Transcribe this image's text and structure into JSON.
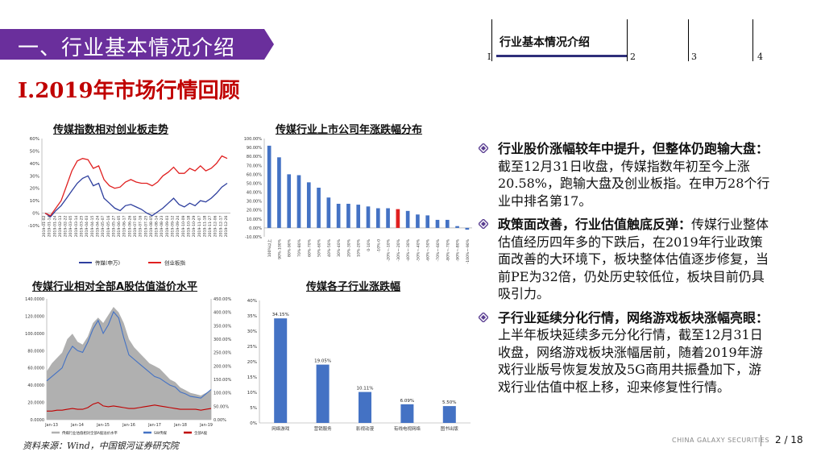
{
  "header": {
    "section_title": "一、行业基本情况介绍",
    "subtitle": "I.2019年市场行情回顾"
  },
  "nav": {
    "active_label": "行业基本情况介绍",
    "numbers": [
      "I",
      "2",
      "3",
      "4"
    ]
  },
  "colors": {
    "banner": "#6a2f9c",
    "media_series": "#2e3f9e",
    "gem_series": "#e02020",
    "bar_blue": "#4472c4",
    "bar_highlight": "#e02020",
    "nav_bar": "#2e2e7a"
  },
  "chart_data": [
    {
      "type": "line",
      "title": "传媒指数相对创业板走势",
      "y_ticks": [
        "-10%",
        "0%",
        "10%",
        "20%",
        "30%",
        "40%",
        "50%",
        "60%"
      ],
      "ylim": [
        -10,
        60
      ],
      "x_ticks": [
        "2019-01-02",
        "2019-01-14",
        "2019-01-24",
        "2019-02-13",
        "2019-02-22",
        "2019-03-05",
        "2019-03-14",
        "2019-03-25",
        "2019-04-03",
        "2019-04-15",
        "2019-04-24",
        "2019-05-07",
        "2019-05-16",
        "2019-05-27",
        "2019-06-05",
        "2019-06-17",
        "2019-06-26",
        "2019-07-05",
        "2019-07-16",
        "2019-07-25",
        "2019-08-05",
        "2019-08-14",
        "2019-08-23",
        "2019-09-03",
        "2019-09-12",
        "2019-09-24",
        "2019-10-09",
        "2019-10-18",
        "2019-10-29",
        "2019-11-07",
        "2019-11-18",
        "2019-11-27",
        "2019-12-06",
        "2019-12-17",
        "2019-12-26"
      ],
      "series": [
        {
          "name": "传媒(申万)",
          "color": "#2e3f9e",
          "values": [
            0,
            -3,
            2,
            6,
            12,
            18,
            24,
            28,
            30,
            22,
            24,
            12,
            8,
            4,
            2,
            6,
            7,
            5,
            3,
            0,
            -2,
            1,
            4,
            8,
            12,
            7,
            5,
            8,
            6,
            10,
            9,
            12,
            16,
            21,
            24
          ]
        },
        {
          "name": "创业板指",
          "color": "#e02020",
          "values": [
            0,
            -2,
            4,
            10,
            22,
            34,
            42,
            44,
            43,
            36,
            38,
            27,
            22,
            20,
            21,
            25,
            27,
            25,
            24,
            24,
            22,
            25,
            30,
            33,
            37,
            32,
            32,
            36,
            34,
            38,
            34,
            36,
            40,
            46,
            44
          ]
        }
      ]
    },
    {
      "type": "bar",
      "title": "传媒行业上市公司年涨跌幅分布",
      "y_ticks": [
        "-10.00%",
        "0.00%",
        "10.00%",
        "20.00%",
        "30.00%",
        "40.00%",
        "50.00%",
        "60.00%",
        "70.00%",
        "80.00%",
        "90.00%",
        "100.00%"
      ],
      "ylim": [
        -10,
        100
      ],
      "categories": [
        "100%以上",
        "90%-100%",
        "80%-90%",
        "70%-80%",
        "60%-70%",
        "50%-60%",
        "40%-50%",
        "30%-40%",
        "20%-30%",
        "10%-20%",
        "0-10%",
        "-10%-0",
        "-20%~-10%",
        "-30%~-20%",
        "-40%~-30%",
        "-50%~-40%",
        "-60%~-50%",
        "-70%~-60%",
        "-80%~-70%",
        "-90%~-80%",
        "-100%~-90%"
      ],
      "values": [
        92,
        79,
        60,
        59,
        51,
        45,
        34,
        27,
        27,
        26,
        24,
        22,
        22,
        21,
        19,
        15,
        14,
        9,
        9,
        2,
        -2
      ],
      "highlight_index": 13
    },
    {
      "type": "area",
      "title": "传媒行业相对全部A股估值溢价水平",
      "y_left_ticks": [
        "0.0000",
        "20.0000",
        "40.0000",
        "60.0000",
        "80.0000",
        "100.0000",
        "120.0000",
        "140.0000"
      ],
      "y_right_ticks": [
        "0.00%",
        "50.00%",
        "100.00%",
        "150.00%",
        "200.00%",
        "250.00%",
        "300.00%",
        "350.00%",
        "400.00%",
        "450.00%"
      ],
      "ylim_left": [
        0,
        140
      ],
      "ylim_right": [
        0,
        450
      ],
      "x_ticks": [
        "Jan-13",
        "Jan-14",
        "Jan-15",
        "Jan-16",
        "Jan-17",
        "Jan-18",
        "Jan-19"
      ],
      "series": [
        {
          "name": "传媒行业估值相对全部A股溢价水平",
          "color": "#b0b0b0",
          "values": [
            180,
            210,
            230,
            250,
            300,
            320,
            290,
            280,
            310,
            360,
            380,
            360,
            390,
            420,
            400,
            360,
            300,
            270,
            250,
            230,
            210,
            200,
            190,
            170,
            150,
            140,
            120,
            110,
            100,
            95,
            90,
            100,
            110
          ]
        },
        {
          "name": "SW传媒",
          "color": "#4472c4",
          "values": [
            45,
            50,
            55,
            60,
            75,
            85,
            80,
            78,
            90,
            105,
            115,
            100,
            110,
            125,
            118,
            95,
            75,
            70,
            65,
            60,
            55,
            50,
            48,
            44,
            40,
            38,
            32,
            30,
            27,
            26,
            25,
            30,
            35
          ]
        },
        {
          "name": "全部A股",
          "color": "#c00000",
          "values": [
            10,
            10,
            11,
            11,
            12,
            13,
            12,
            12,
            14,
            18,
            20,
            16,
            15,
            16,
            15,
            14,
            13,
            13,
            14,
            15,
            16,
            17,
            16,
            15,
            14,
            13,
            12,
            12,
            12,
            12,
            11,
            12,
            13
          ]
        }
      ]
    },
    {
      "type": "bar",
      "title": "传媒各子行业涨跌幅",
      "y_ticks": [
        "0%",
        "5%",
        "10%",
        "15%",
        "20%",
        "25%",
        "30%",
        "35%",
        "40%"
      ],
      "ylim": [
        0,
        40
      ],
      "categories": [
        "网络游戏",
        "营销服务",
        "影视动漫",
        "有线电视网络",
        "图书出版"
      ],
      "values": [
        34.15,
        19.05,
        10.11,
        6.09,
        5.5
      ],
      "labels": [
        "34.15%",
        "19.05%",
        "10.11%",
        "6.09%",
        "5.50%"
      ]
    }
  ],
  "bullets": [
    {
      "head": "行业股价涨幅较年中提升，但整体仍跑输大盘：",
      "body": "截至12月31日收盘，传媒指数年初至今上涨20.58%，跑输大盘及创业板指。在申万28个行业中排名第17。"
    },
    {
      "head": "政策面改善，行业估值触底反弹：",
      "body": "传媒行业整体估值经历四年多的下跌后，在2019年行业政策面改善的大环境下，板块整体估值逐步修复，当前PE为32倍，仍处历史较低位，板块目前仍具吸引力。"
    },
    {
      "head": "子行业延续分化行情，网络游戏板块涨幅亮眼：",
      "body": "上半年板块延续多元分化行情，截至12月31日收盘，网络游戏板块涨幅居前，随着2019年游戏行业版号恢复发放及5G商用共振叠加下，游戏行业估值中枢上移，迎来修复性行情。"
    }
  ],
  "source": "资料来源：Wind，中国银河证券研究院",
  "footer": {
    "brand": "CHINA GALAXY SECURITIES",
    "page": "2 / 18"
  }
}
